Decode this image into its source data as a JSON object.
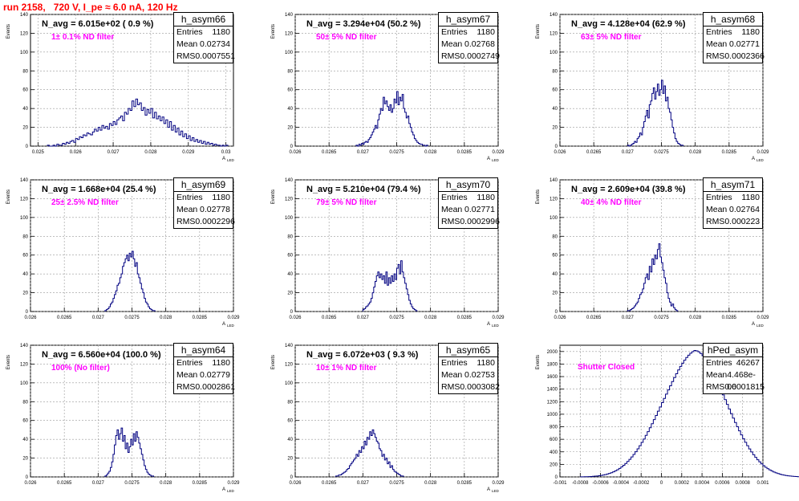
{
  "title": "run 2158,   720 V, I_pe ≈ 6.0 nA, 120 Hz",
  "chart_data": [
    {
      "type": "bar",
      "name": "h_asym66",
      "n_avg": "N_avg = 6.015e+02 ( 0.9 %)",
      "annotation": "1± 0.1% ND filter",
      "stats": {
        "entries": "1180",
        "mean": "0.02734",
        "rms": "0.0007551"
      },
      "ylabel": "Events",
      "xlabel": "A",
      "xlabel_sub": "LED",
      "xlim": [
        0.0248,
        0.0302
      ],
      "ylim": [
        0,
        140
      ],
      "xticks": [
        0.025,
        0.026,
        0.027,
        0.028,
        0.029,
        0.03
      ],
      "xtick_labels": [
        "0.025",
        "0.026",
        "0.027",
        "0.028",
        "0.029",
        "0.03"
      ],
      "yticks": [
        0,
        20,
        40,
        60,
        80,
        100,
        120,
        140
      ],
      "bin_start": 0.02525,
      "bin_width": 5e-05,
      "values": [
        1,
        0,
        0,
        1,
        0,
        2,
        1,
        1,
        3,
        2,
        4,
        3,
        5,
        6,
        4,
        8,
        7,
        10,
        9,
        12,
        11,
        14,
        13,
        12,
        15,
        18,
        16,
        20,
        17,
        22,
        19,
        21,
        18,
        24,
        22,
        26,
        23,
        28,
        30,
        32,
        27,
        36,
        34,
        40,
        38,
        48,
        42,
        50,
        44,
        46,
        38,
        41,
        33,
        39,
        35,
        40,
        30,
        36,
        29,
        32,
        27,
        31,
        24,
        28,
        20,
        26,
        17,
        22,
        15,
        19,
        12,
        16,
        10,
        13,
        8,
        11,
        6,
        9,
        5,
        7,
        4,
        6,
        3,
        5,
        2,
        4,
        2,
        3,
        1,
        2,
        1,
        1,
        0,
        1,
        0,
        1
      ]
    },
    {
      "type": "bar",
      "name": "h_asym67",
      "n_avg": "N_avg = 3.294e+04 (50.2 %)",
      "annotation": "50± 5% ND filter",
      "stats": {
        "entries": "1180",
        "mean": "0.02768",
        "rms": "0.0002749"
      },
      "ylabel": "Events",
      "xlabel": "A",
      "xlabel_sub": "LED",
      "xlim": [
        0.026,
        0.029
      ],
      "ylim": [
        0,
        140
      ],
      "xticks": [
        0.026,
        0.0265,
        0.027,
        0.0275,
        0.028,
        0.0285,
        0.029
      ],
      "xtick_labels": [
        "0.026",
        "0.0265",
        "0.027",
        "0.0275",
        "0.028",
        "0.0285",
        "0.029"
      ],
      "yticks": [
        0,
        20,
        40,
        60,
        80,
        100,
        120,
        140
      ],
      "bin_start": 0.0269,
      "bin_width": 2e-05,
      "values": [
        1,
        0,
        2,
        1,
        3,
        2,
        4,
        5,
        4,
        7,
        9,
        12,
        15,
        18,
        22,
        19,
        28,
        34,
        40,
        38,
        52,
        45,
        48,
        42,
        38,
        44,
        36,
        40,
        50,
        46,
        58,
        44,
        52,
        48,
        55,
        40,
        36,
        30,
        32,
        24,
        20,
        15,
        12,
        8,
        6,
        4,
        3,
        2,
        2,
        1,
        1,
        0,
        1
      ]
    },
    {
      "type": "bar",
      "name": "h_asym68",
      "n_avg": "N_avg = 4.128e+04 (62.9 %)",
      "annotation": "63± 5% ND filter",
      "stats": {
        "entries": "1180",
        "mean": "0.02771",
        "rms": "0.0002366"
      },
      "ylabel": "Events",
      "xlabel": "A",
      "xlabel_sub": "LED",
      "xlim": [
        0.026,
        0.029
      ],
      "ylim": [
        0,
        140
      ],
      "xticks": [
        0.026,
        0.0265,
        0.027,
        0.0275,
        0.028,
        0.0285,
        0.029
      ],
      "xtick_labels": [
        "0.026",
        "0.0265",
        "0.027",
        "0.0275",
        "0.028",
        "0.0285",
        "0.029"
      ],
      "yticks": [
        0,
        20,
        40,
        60,
        80,
        100,
        120,
        140
      ],
      "bin_start": 0.027,
      "bin_width": 2e-05,
      "values": [
        1,
        0,
        1,
        2,
        3,
        5,
        4,
        8,
        10,
        14,
        12,
        20,
        26,
        32,
        38,
        30,
        44,
        48,
        56,
        62,
        50,
        58,
        66,
        54,
        60,
        70,
        56,
        64,
        48,
        52,
        40,
        36,
        28,
        20,
        14,
        8,
        5,
        3,
        2,
        1,
        1
      ]
    },
    {
      "type": "bar",
      "name": "h_asym69",
      "n_avg": "N_avg = 1.668e+04 (25.4 %)",
      "annotation": "25± 2.5% ND filter",
      "stats": {
        "entries": "1180",
        "mean": "0.02778",
        "rms": "0.0002296"
      },
      "ylabel": "Events",
      "xlabel": "A",
      "xlabel_sub": "LED",
      "xlim": [
        0.026,
        0.029
      ],
      "ylim": [
        0,
        140
      ],
      "xticks": [
        0.026,
        0.0265,
        0.027,
        0.0275,
        0.028,
        0.0285,
        0.029
      ],
      "xtick_labels": [
        "0.026",
        "0.0265",
        "0.027",
        "0.0275",
        "0.028",
        "0.0285",
        "0.029"
      ],
      "yticks": [
        0,
        20,
        40,
        60,
        80,
        100,
        120,
        140
      ],
      "bin_start": 0.0271,
      "bin_width": 2e-05,
      "values": [
        1,
        2,
        3,
        5,
        8,
        10,
        14,
        18,
        22,
        28,
        30,
        36,
        40,
        48,
        52,
        56,
        60,
        54,
        62,
        58,
        64,
        56,
        48,
        52,
        40,
        36,
        30,
        24,
        20,
        14,
        10,
        8,
        5,
        3,
        2,
        1,
        1
      ]
    },
    {
      "type": "bar",
      "name": "h_asym70",
      "n_avg": "N_avg = 5.210e+04 (79.4 %)",
      "annotation": "79± 5% ND filter",
      "stats": {
        "entries": "1180",
        "mean": "0.02771",
        "rms": "0.0002996"
      },
      "ylabel": "Events",
      "xlabel": "A",
      "xlabel_sub": "LED",
      "xlim": [
        0.026,
        0.029
      ],
      "ylim": [
        0,
        140
      ],
      "xticks": [
        0.026,
        0.0265,
        0.027,
        0.0275,
        0.028,
        0.0285,
        0.029
      ],
      "xtick_labels": [
        "0.026",
        "0.0265",
        "0.027",
        "0.0275",
        "0.028",
        "0.0285",
        "0.029"
      ],
      "yticks": [
        0,
        20,
        40,
        60,
        80,
        100,
        120,
        140
      ],
      "bin_start": 0.027,
      "bin_width": 2e-05,
      "values": [
        2,
        3,
        5,
        6,
        8,
        10,
        14,
        20,
        26,
        32,
        38,
        42,
        36,
        40,
        34,
        38,
        30,
        42,
        28,
        36,
        30,
        38,
        32,
        40,
        34,
        46,
        50,
        40,
        54,
        42,
        36,
        30,
        24,
        18,
        12,
        8,
        5,
        3,
        2,
        1
      ]
    },
    {
      "type": "bar",
      "name": "h_asym71",
      "n_avg": "N_avg = 2.609e+04 (39.8 %)",
      "annotation": "40± 4% ND filter",
      "stats": {
        "entries": "1180",
        "mean": "0.02764",
        "rms": "0.000223"
      },
      "ylabel": "Events",
      "xlabel": "A",
      "xlabel_sub": "LED",
      "xlim": [
        0.026,
        0.029
      ],
      "ylim": [
        0,
        140
      ],
      "xticks": [
        0.026,
        0.0265,
        0.027,
        0.0275,
        0.028,
        0.0285,
        0.029
      ],
      "xtick_labels": [
        "0.026",
        "0.0265",
        "0.027",
        "0.0275",
        "0.028",
        "0.0285",
        "0.029"
      ],
      "yticks": [
        0,
        20,
        40,
        60,
        80,
        100,
        120,
        140
      ],
      "bin_start": 0.027,
      "bin_width": 2e-05,
      "values": [
        1,
        1,
        2,
        3,
        4,
        6,
        8,
        10,
        14,
        18,
        20,
        24,
        30,
        36,
        40,
        34,
        48,
        42,
        56,
        50,
        60,
        56,
        66,
        72,
        58,
        52,
        44,
        36,
        30,
        20,
        14,
        10,
        6,
        8,
        4,
        2,
        1
      ]
    },
    {
      "type": "bar",
      "name": "h_asym64",
      "n_avg": "N_avg = 6.560e+04 (100.0 %)",
      "annotation": "100% (No filter)",
      "stats": {
        "entries": "1180",
        "mean": "0.02779",
        "rms": "0.0002861"
      },
      "ylabel": "Events",
      "xlabel": "A",
      "xlabel_sub": "LED",
      "xlim": [
        0.026,
        0.029
      ],
      "ylim": [
        0,
        140
      ],
      "xticks": [
        0.026,
        0.0265,
        0.027,
        0.0275,
        0.028,
        0.0285,
        0.029
      ],
      "xtick_labels": [
        "0.026",
        "0.0265",
        "0.027",
        "0.0275",
        "0.028",
        "0.0285",
        "0.029"
      ],
      "yticks": [
        0,
        20,
        40,
        60,
        80,
        100,
        120,
        140
      ],
      "bin_start": 0.0271,
      "bin_width": 2e-05,
      "values": [
        1,
        2,
        4,
        6,
        10,
        16,
        24,
        34,
        44,
        50,
        40,
        46,
        52,
        38,
        44,
        30,
        36,
        26,
        32,
        40,
        34,
        46,
        38,
        48,
        42,
        36,
        30,
        24,
        18,
        12,
        8,
        5,
        3,
        2,
        1,
        1
      ]
    },
    {
      "type": "bar",
      "name": "h_asym65",
      "n_avg": "N_avg = 6.072e+03 ( 9.3 %)",
      "annotation": "10± 1% ND filter",
      "stats": {
        "entries": "1180",
        "mean": "0.02753",
        "rms": "0.0003082"
      },
      "ylabel": "Events",
      "xlabel": "A",
      "xlabel_sub": "LED",
      "xlim": [
        0.026,
        0.029
      ],
      "ylim": [
        0,
        140
      ],
      "xticks": [
        0.026,
        0.0265,
        0.027,
        0.0275,
        0.028,
        0.0285,
        0.029
      ],
      "xtick_labels": [
        "0.026",
        "0.0265",
        "0.027",
        "0.0275",
        "0.028",
        "0.0285",
        "0.029"
      ],
      "yticks": [
        0,
        20,
        40,
        60,
        80,
        100,
        120,
        140
      ],
      "bin_start": 0.0266,
      "bin_width": 2e-05,
      "values": [
        1,
        1,
        2,
        2,
        3,
        4,
        5,
        6,
        8,
        9,
        12,
        14,
        16,
        18,
        20,
        24,
        22,
        28,
        26,
        32,
        30,
        38,
        34,
        42,
        40,
        48,
        44,
        50,
        46,
        42,
        38,
        36,
        30,
        28,
        22,
        24,
        18,
        20,
        14,
        16,
        10,
        12,
        8,
        6,
        5,
        4,
        3,
        2,
        1,
        1
      ]
    },
    {
      "type": "bar",
      "name": "hPed_asym",
      "n_avg": "",
      "annotation": "Shutter Closed",
      "stats": {
        "entries": "46267",
        "mean": "4.468e-06",
        "rms": "0.0001815"
      },
      "ylabel": "Events",
      "xlabel": "",
      "xlabel_sub": "",
      "xlim": [
        -0.001,
        0.001
      ],
      "ylim": [
        0,
        2100
      ],
      "xticks": [
        -0.001,
        -0.0008,
        -0.0006,
        -0.0004,
        -0.0002,
        0,
        0.0002,
        0.0004,
        0.0006,
        0.0008,
        0.001
      ],
      "xtick_labels": [
        "-0.001",
        "-0.0008",
        "-0.0006",
        "-0.0004",
        "-0.0002",
        "0",
        "0.0002",
        "0.0004",
        "0.0006",
        "0.0008",
        "0.001"
      ],
      "yticks": [
        0,
        200,
        400,
        600,
        800,
        1000,
        1200,
        1400,
        1600,
        1800,
        2000
      ],
      "bin_start": -0.0008,
      "bin_width": 2e-05,
      "values": [
        1,
        2,
        3,
        4,
        5,
        7,
        9,
        12,
        15,
        19,
        24,
        30,
        37,
        46,
        56,
        68,
        82,
        98,
        116,
        136,
        160,
        186,
        214,
        246,
        280,
        318,
        358,
        402,
        448,
        498,
        550,
        604,
        662,
        722,
        784,
        848,
        914,
        980,
        1048,
        1116,
        1184,
        1252,
        1320,
        1388,
        1454,
        1520,
        1584,
        1646,
        1706,
        1762,
        1814,
        1862,
        1904,
        1942,
        1974,
        1998,
        2016,
        2010,
        1994,
        1968,
        1934,
        1892,
        1844,
        1790,
        1730,
        1666,
        1598,
        1528,
        1456,
        1382,
        1308,
        1232,
        1158,
        1084,
        1010,
        938,
        868,
        800,
        734,
        670,
        610,
        552,
        498,
        446,
        398,
        354,
        312,
        274,
        240,
        208,
        180,
        154,
        132,
        112,
        94,
        79,
        65,
        54,
        44,
        36,
        29,
        23,
        18,
        14,
        11,
        8,
        6,
        4,
        3,
        2,
        2,
        1,
        1
      ]
    }
  ]
}
